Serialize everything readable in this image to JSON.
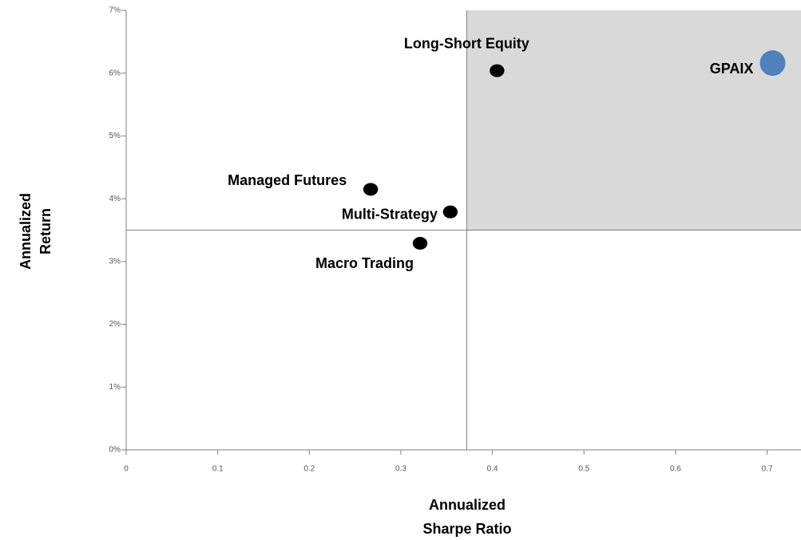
{
  "chart_data": {
    "type": "scatter",
    "xlabel": [
      "Annualized",
      "Sharpe Ratio"
    ],
    "ylabel": [
      "Annualized",
      "Return"
    ],
    "series": [
      {
        "name": "Long-Short Equity",
        "color": "#000000",
        "x": [
          0.405
        ],
        "values": [
          6.04
        ]
      },
      {
        "name": "GPAIX",
        "color": "#4f81bd",
        "x": [
          0.706
        ],
        "values": [
          6.16
        ]
      },
      {
        "name": "Managed Futures",
        "color": "#000000",
        "x": [
          0.267
        ],
        "values": [
          4.15
        ]
      },
      {
        "name": "Multi-Strategy",
        "color": "#000000",
        "x": [
          0.354
        ],
        "values": [
          3.79
        ]
      },
      {
        "name": "Macro Trading",
        "color": "#000000",
        "x": [
          0.321
        ],
        "values": [
          3.29
        ]
      }
    ],
    "reference_x": 0.372,
    "reference_y": 3.5,
    "quadrant_color": "#d9d9d9",
    "xlim": [
      0,
      0.737
    ],
    "xticks": [
      0,
      0.1,
      0.2,
      0.3,
      0.4,
      0.5,
      0.6,
      0.7
    ],
    "ylim": [
      0,
      7
    ],
    "yticks": [
      {
        "value": 0,
        "label": "0%"
      },
      {
        "value": 1,
        "label": "1%"
      },
      {
        "value": 2,
        "label": "2%"
      },
      {
        "value": 3,
        "label": "3%"
      },
      {
        "value": 4,
        "label": "4%"
      },
      {
        "value": 5,
        "label": "5%"
      },
      {
        "value": 6,
        "label": "6%"
      },
      {
        "value": 7,
        "label": "7%"
      }
    ]
  }
}
